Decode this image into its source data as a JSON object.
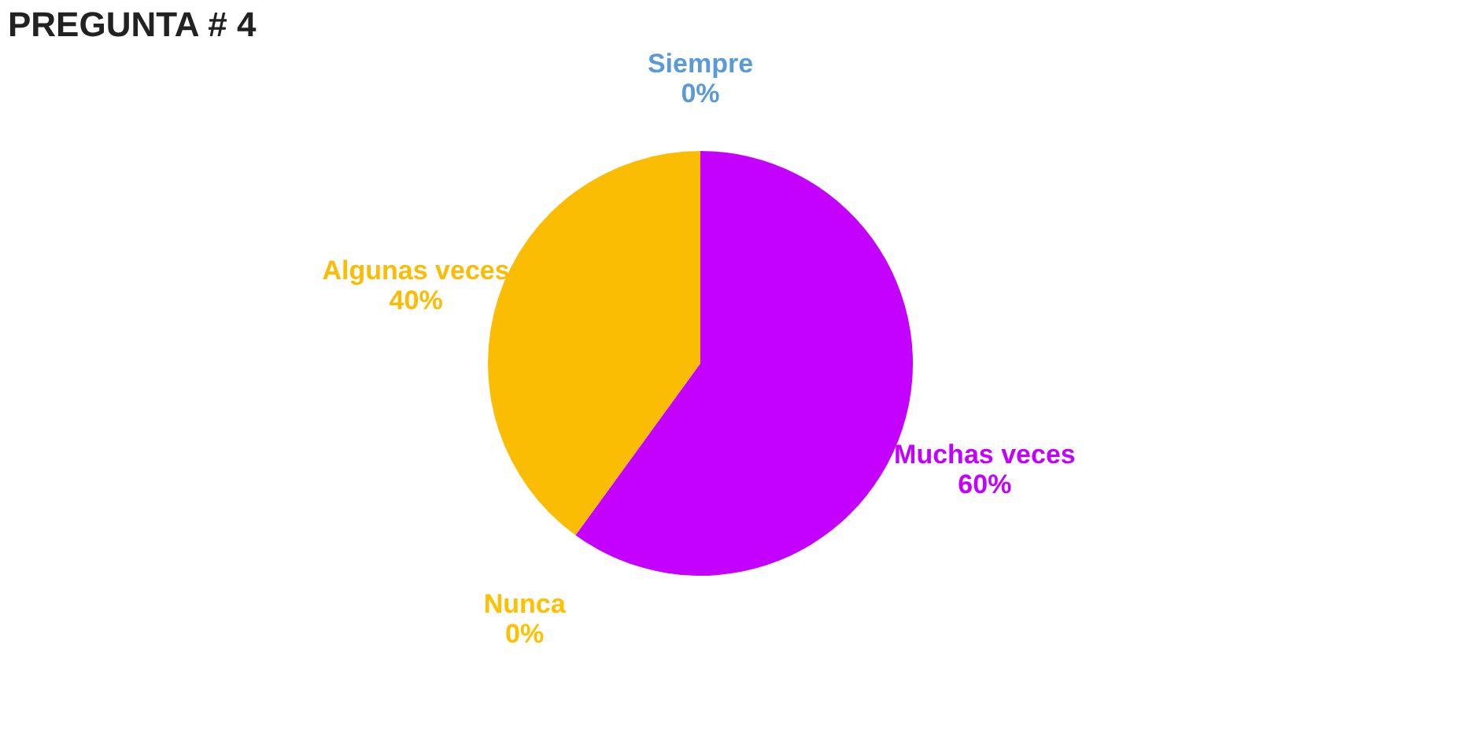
{
  "chart_data": {
    "type": "pie",
    "title": "PREGUNTA # 4",
    "categories": [
      "Siempre",
      "Muchas veces",
      "Nunca",
      "Algunas veces"
    ],
    "values": [
      0,
      60,
      0,
      40
    ],
    "value_labels": [
      "0%",
      "60%",
      "0%",
      "40%"
    ],
    "colors": [
      "#5b9bd5",
      "#c400ff",
      "#ffc000",
      "#fbbc04"
    ],
    "legend": false
  }
}
